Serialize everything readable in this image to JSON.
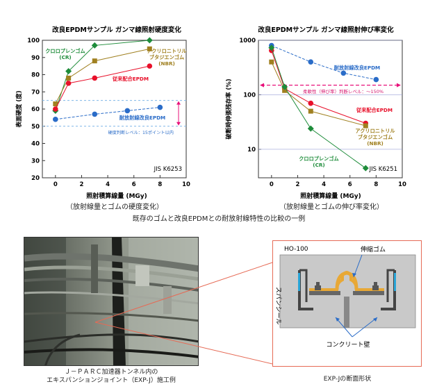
{
  "chart_data": [
    {
      "type": "line",
      "title": "改良EPDMサンプル ガンマ線照射硬度変化",
      "xlabel": "照射積算線量 (MGy)",
      "ylabel": "表面硬度 (度)",
      "xlim": [
        -1,
        10
      ],
      "ylim": [
        20,
        100
      ],
      "xticks": [
        "0",
        "2",
        "4",
        "6",
        "8",
        "10"
      ],
      "yticks": [
        "20",
        "30",
        "40",
        "50",
        "60",
        "70",
        "80",
        "90",
        "100"
      ],
      "grid": false,
      "series": [
        {
          "name": "クロロプレンゴム (CR)",
          "label1": "クロロプレンゴム",
          "label2": "(CR)",
          "color": "#1e8c3a",
          "marker": "diamond",
          "x": [
            0,
            1,
            3,
            7.2
          ],
          "y": [
            59,
            82,
            97,
            100
          ]
        },
        {
          "name": "アクリロニトリル ブタジエンゴム (NBR)",
          "label1": "アクリロニトリル",
          "label2": "ブタジエンゴム",
          "label3": "(NBR)",
          "color": "#a08020",
          "marker": "square",
          "x": [
            0,
            1,
            3,
            7.2
          ],
          "y": [
            63,
            78,
            88,
            95
          ]
        },
        {
          "name": "従来配合EPDM",
          "label1": "従来配合EPDM",
          "color": "#e8102a",
          "marker": "circle",
          "x": [
            0,
            1,
            3,
            7.2
          ],
          "y": [
            60,
            75,
            78,
            85
          ]
        },
        {
          "name": "耐放射線改良EPDM",
          "label1": "耐放射線改良EPDM",
          "color": "#2a6cc8",
          "marker": "circle",
          "x": [
            0,
            3,
            5.5,
            8
          ],
          "y": [
            54,
            57,
            59,
            61
          ]
        }
      ],
      "annotations": {
        "criterion": "硬度判断レベル：15ポイント以内",
        "standard": "JIS K6253"
      },
      "caption": "（放射線量とゴムの硬度変化）"
    },
    {
      "type": "line",
      "title": "改良EPDMサンプル ガンマ線照射伸び率変化",
      "xlabel": "照射積算線量 (MGy)",
      "ylabel": "破断時伸張残存率 (%)",
      "log_y": true,
      "xlim": [
        -1,
        10
      ],
      "ylim": [
        3,
        1000
      ],
      "xticks": [
        "0",
        "2",
        "4",
        "6",
        "8",
        "10"
      ],
      "yticks": [
        "1000",
        "100",
        "10"
      ],
      "grid": false,
      "series": [
        {
          "name": "耐放射線改良EPDM",
          "label1": "耐放射線改良EPDM",
          "color": "#2a6cc8",
          "marker": "circle",
          "x": [
            0,
            3,
            5.5,
            8
          ],
          "y": [
            800,
            400,
            250,
            190
          ]
        },
        {
          "name": "従来配合EPDM",
          "label1": "従来配合EPDM",
          "color": "#e8102a",
          "marker": "circle",
          "x": [
            0,
            1,
            3,
            7.2
          ],
          "y": [
            650,
            130,
            70,
            30
          ]
        },
        {
          "name": "アクリロニトリル ブタジエンゴム (NBR)",
          "label1": "アクリロニトリル",
          "label2": "ブタジエンゴム",
          "label3": "(NBR)",
          "color": "#a08020",
          "marker": "square",
          "x": [
            0,
            1,
            3,
            7.2
          ],
          "y": [
            400,
            120,
            50,
            27
          ]
        },
        {
          "name": "クロロプレンゴム (CR)",
          "label1": "クロロプレンゴム",
          "label2": "(CR)",
          "color": "#1e8c3a",
          "marker": "diamond",
          "x": [
            0,
            1,
            3,
            7.2
          ],
          "y": [
            730,
            140,
            24,
            4.5
          ]
        }
      ],
      "annotations": {
        "criterion": "柔軟性（伸び率）判断レベル：～150%",
        "standard": "JIS K6251"
      },
      "caption": "（放射線量とゴムの伸び率変化）"
    }
  ],
  "main_caption": "既存のゴムと改良EPDMとの耐放射線特性の比較の一例",
  "photo_caption_line1": "Ｊ－ＰＡＲＣ加速器トンネル内の",
  "photo_caption_line2": "エキスパンションジョイント（EXP-J）施工例",
  "section": {
    "label_ho": "HO-100",
    "label_rubber": "伸縮ゴム",
    "label_seal": "スパンシール",
    "label_wall": "コンクリート壁",
    "caption": "EXP-Jの断面形状"
  }
}
